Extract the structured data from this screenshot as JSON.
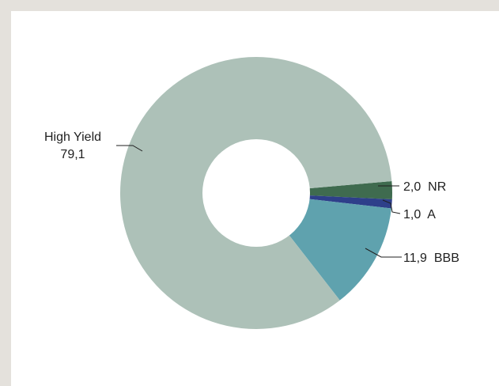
{
  "chart_data": {
    "type": "pie",
    "variant": "donut",
    "title": "",
    "start_angle_deg": 90,
    "direction": "clockwise",
    "slices": [
      {
        "key": "nr",
        "label": "NR",
        "value": 2.0,
        "value_text": "2,0",
        "color": "#3f6b4f"
      },
      {
        "key": "a",
        "label": "A",
        "value": 1.0,
        "value_text": "1,0",
        "color": "#2e3f8a"
      },
      {
        "key": "bbb",
        "label": "BBB",
        "value": 11.9,
        "value_text": "11,9",
        "color": "#5fa2ae"
      },
      {
        "key": "hy",
        "label": "High Yield",
        "value": 79.1,
        "value_text": "79,1",
        "color": "#adc1b8"
      }
    ],
    "legend": "none"
  },
  "labels": {
    "hy_name": "High Yield",
    "hy_value": "79,1",
    "nr": "2,0  NR",
    "a": "1,0  A",
    "bbb": "11,9  BBB"
  }
}
